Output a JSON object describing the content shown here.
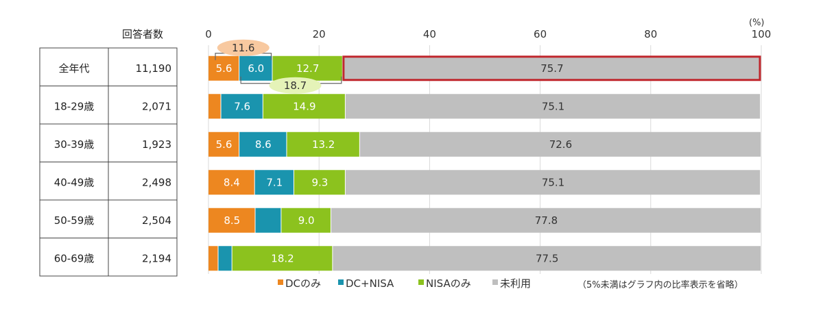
{
  "table": {
    "header": "回答者数",
    "rows": [
      {
        "label": "全年代",
        "count": "11,190"
      },
      {
        "label": "18-29歳",
        "count": "2,071"
      },
      {
        "label": "30-39歳",
        "count": "1,923"
      },
      {
        "label": "40-49歳",
        "count": "2,498"
      },
      {
        "label": "50-59歳",
        "count": "2,504"
      },
      {
        "label": "60-69歳",
        "count": "2,194"
      }
    ]
  },
  "chart_data": {
    "type": "bar",
    "orientation": "horizontal",
    "stacked": true,
    "unit": "(%)",
    "xlim": [
      0,
      100
    ],
    "ticks": [
      "0",
      "20",
      "40",
      "60",
      "80",
      "100"
    ],
    "categories": [
      "全年代",
      "18-29歳",
      "30-39歳",
      "40-49歳",
      "50-59歳",
      "60-69歳"
    ],
    "series": [
      {
        "name": "DCのみ",
        "color": "#ED8720",
        "values": [
          5.6,
          2.3,
          5.6,
          8.4,
          8.5,
          1.8
        ],
        "labels": [
          "5.6",
          "",
          "5.6",
          "8.4",
          "8.5",
          ""
        ]
      },
      {
        "name": "DC+NISA",
        "color": "#1A94AE",
        "values": [
          6.0,
          7.6,
          8.6,
          7.1,
          4.7,
          2.5
        ],
        "labels": [
          "6.0",
          "7.6",
          "8.6",
          "7.1",
          "",
          ""
        ]
      },
      {
        "name": "NISAのみ",
        "color": "#8CC21E",
        "values": [
          12.7,
          14.9,
          13.2,
          9.3,
          9.0,
          18.2
        ],
        "labels": [
          "12.7",
          "14.9",
          "13.2",
          "9.3",
          "9.0",
          "18.2"
        ]
      },
      {
        "name": "未利用",
        "color": "#BFBFBF",
        "values": [
          75.7,
          75.1,
          72.6,
          75.1,
          77.8,
          77.5
        ],
        "labels": [
          "75.7",
          "75.1",
          "72.6",
          "75.1",
          "77.8",
          "77.5"
        ]
      }
    ],
    "annotations": [
      {
        "text": "11.6",
        "spans": "DCのみ + DC+NISA",
        "row": "全年代"
      },
      {
        "text": "18.7",
        "spans": "DC+NISA + NISAのみ",
        "row": "全年代"
      }
    ],
    "highlight": {
      "row": "全年代",
      "series": "未利用",
      "color": "#C0272D"
    },
    "legend_position": "bottom",
    "note": "（5%未満はグラフ内の比率表示を省略）"
  }
}
